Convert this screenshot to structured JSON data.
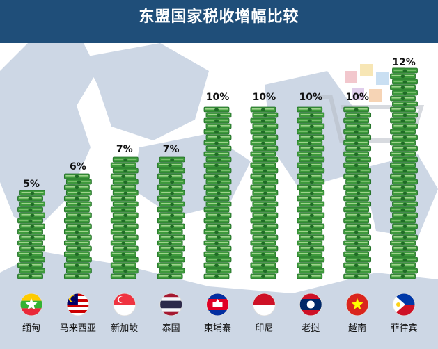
{
  "chart_data": {
    "type": "bar",
    "title": "东盟国家税收增幅比较",
    "categories": [
      "缅甸",
      "马来西亚",
      "新加坡",
      "泰国",
      "柬埔寨",
      "印尼",
      "老挝",
      "越南",
      "菲律宾"
    ],
    "values": [
      5,
      6,
      7,
      7,
      10,
      10,
      10,
      10,
      12
    ],
    "value_labels": [
      "5%",
      "6%",
      "7%",
      "7%",
      "10%",
      "10%",
      "10%",
      "10%",
      "12%"
    ],
    "ylim": [
      0,
      12
    ],
    "grid": false,
    "legend": "none",
    "flags": [
      "myanmar-flag",
      "malaysia-flag",
      "singapore-flag",
      "thailand-flag",
      "cambodia-flag",
      "indonesia-flag",
      "laos-flag",
      "vietnam-flag",
      "philippines-flag"
    ]
  },
  "colors": {
    "header": "#1f4e79",
    "bill": "#3e9a3c",
    "bill_dark": "#1f6b26",
    "bill_light": "#9fd38c",
    "map": "#c9d4e3"
  }
}
